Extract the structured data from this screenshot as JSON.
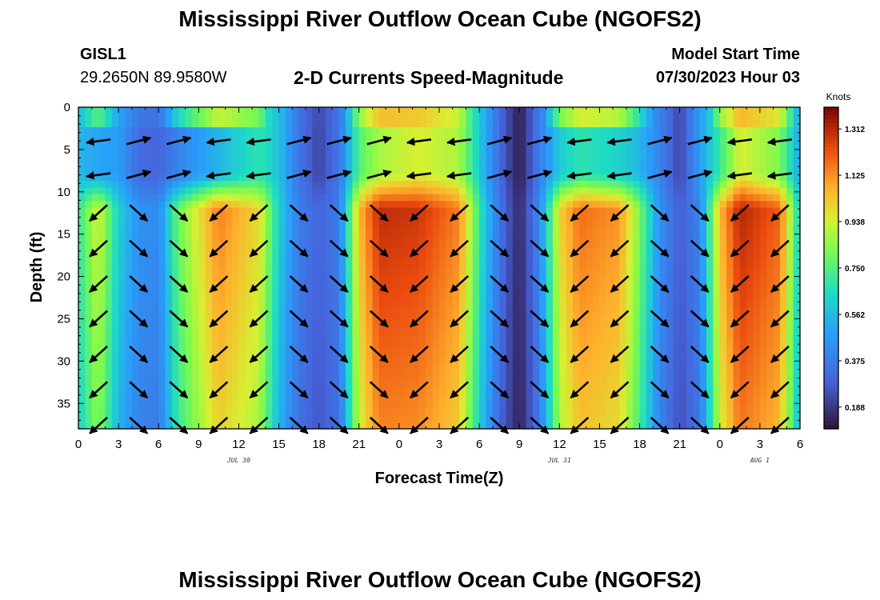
{
  "header": {
    "title": "Mississippi River Outflow Ocean Cube (NGOFS2)",
    "station_id": "GISL1",
    "station_location": "29.2650N  89.9580W",
    "subtitle": "2-D Currents Speed-Magnitude",
    "model_start_label": "Model Start Time",
    "model_start_value": "07/30/2023 Hour 03"
  },
  "footer": {
    "title": "Mississippi River Outflow Ocean Cube (NGOFS2)"
  },
  "chart_data": {
    "type": "heatmap",
    "xlabel": "Forecast Time(Z)",
    "ylabel": "Depth (ft)",
    "x_range_hours": [
      0,
      54
    ],
    "y_range_ft": [
      0,
      38
    ],
    "y_inverted": true,
    "x_tick_labels": [
      "0",
      "3",
      "6",
      "9",
      "12",
      "15",
      "18",
      "21",
      "0",
      "3",
      "6",
      "9",
      "12",
      "15",
      "18",
      "21",
      "0",
      "3",
      "6"
    ],
    "y_tick_values": [
      0,
      5,
      10,
      15,
      20,
      25,
      30,
      35
    ],
    "date_labels": [
      {
        "text": "JUL 30",
        "hour": 12
      },
      {
        "text": "JUL 31",
        "hour": 36
      },
      {
        "text": "AUG 1",
        "hour": 51
      }
    ],
    "colorbar": {
      "title": "Knots",
      "min": 0.1,
      "max": 1.4,
      "ticks": [
        "0.188",
        "0.375",
        "0.562",
        "0.750",
        "0.938",
        "1.125",
        "1.312"
      ]
    },
    "surface_layer_depth_ft": 8,
    "vector_depths_ft": [
      4,
      8,
      12.5,
      16.7,
      20.9,
      25,
      29.2,
      33.4,
      37.6
    ],
    "vector_times_hours": [
      1.5,
      4.5,
      7.5,
      10.5,
      13.5,
      16.5,
      19.5,
      22.5,
      25.5,
      28.5,
      31.5,
      34.5,
      37.5,
      40.5,
      43.5,
      46.5,
      49.5,
      52.5
    ],
    "speed_profile": [
      {
        "hour": 0,
        "deep": 0.7,
        "surface": 0.55
      },
      {
        "hour": 1.5,
        "deep": 0.95,
        "surface": 0.5
      },
      {
        "hour": 3,
        "deep": 0.62,
        "surface": 0.48
      },
      {
        "hour": 4.5,
        "deep": 0.45,
        "surface": 0.32
      },
      {
        "hour": 6,
        "deep": 0.42,
        "surface": 0.3
      },
      {
        "hour": 7.5,
        "deep": 0.8,
        "surface": 0.4
      },
      {
        "hour": 10.5,
        "deep": 1.15,
        "surface": 0.55
      },
      {
        "hour": 13.5,
        "deep": 1.0,
        "surface": 0.68
      },
      {
        "hour": 15,
        "deep": 0.62,
        "surface": 0.58
      },
      {
        "hour": 16.5,
        "deep": 0.38,
        "surface": 0.35
      },
      {
        "hour": 18,
        "deep": 0.3,
        "surface": 0.22
      },
      {
        "hour": 19.5,
        "deep": 0.38,
        "surface": 0.35
      },
      {
        "hour": 21,
        "deep": 1.05,
        "surface": 0.75
      },
      {
        "hour": 22.5,
        "deep": 1.3,
        "surface": 0.88
      },
      {
        "hour": 25.5,
        "deep": 1.28,
        "surface": 0.95
      },
      {
        "hour": 28.5,
        "deep": 1.15,
        "surface": 0.88
      },
      {
        "hour": 30,
        "deep": 0.7,
        "surface": 0.6
      },
      {
        "hour": 31.5,
        "deep": 0.35,
        "surface": 0.32
      },
      {
        "hour": 33,
        "deep": 0.15,
        "surface": 0.12
      },
      {
        "hour": 34.5,
        "deep": 0.42,
        "surface": 0.38
      },
      {
        "hour": 36,
        "deep": 1.0,
        "surface": 0.6
      },
      {
        "hour": 37.5,
        "deep": 1.18,
        "surface": 0.68
      },
      {
        "hour": 40.5,
        "deep": 1.12,
        "surface": 0.62
      },
      {
        "hour": 42,
        "deep": 0.82,
        "surface": 0.55
      },
      {
        "hour": 43.5,
        "deep": 0.45,
        "surface": 0.4
      },
      {
        "hour": 45,
        "deep": 0.28,
        "surface": 0.22
      },
      {
        "hour": 46.5,
        "deep": 0.4,
        "surface": 0.48
      },
      {
        "hour": 48,
        "deep": 1.05,
        "surface": 0.7
      },
      {
        "hour": 49.5,
        "deep": 1.32,
        "surface": 0.95
      },
      {
        "hour": 52.5,
        "deep": 1.2,
        "surface": 0.82
      },
      {
        "hour": 54,
        "deep": 0.6,
        "surface": 0.5
      }
    ]
  }
}
